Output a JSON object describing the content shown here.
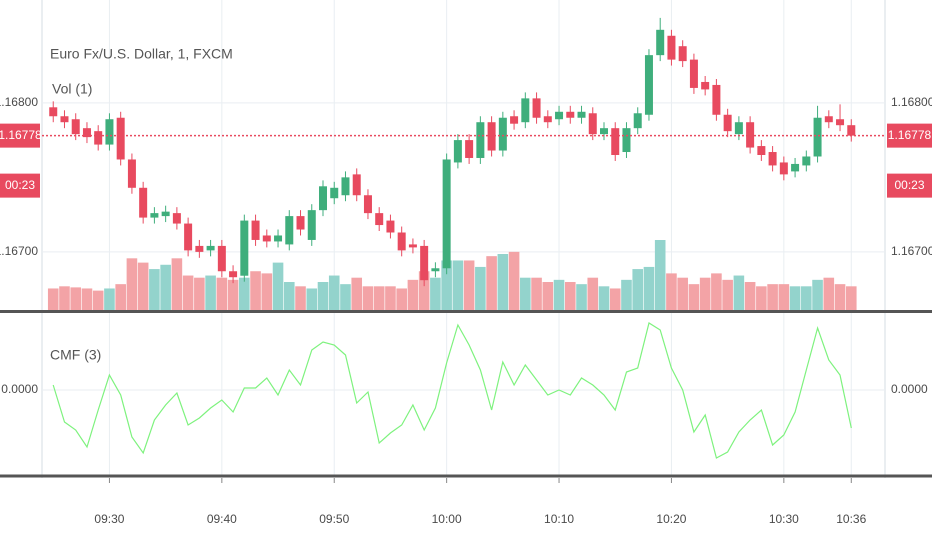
{
  "chart_data": [
    {
      "type": "candlestick",
      "title": "Euro Fx/U.S. Dollar, 1, FXCM",
      "volume_label": "Vol (1)",
      "x": [
        "09:25",
        "09:26",
        "09:27",
        "09:28",
        "09:29",
        "09:30",
        "09:31",
        "09:32",
        "09:33",
        "09:34",
        "09:35",
        "09:36",
        "09:37",
        "09:38",
        "09:39",
        "09:40",
        "09:41",
        "09:42",
        "09:43",
        "09:44",
        "09:45",
        "09:46",
        "09:47",
        "09:48",
        "09:49",
        "09:50",
        "09:51",
        "09:52",
        "09:53",
        "09:54",
        "09:55",
        "09:56",
        "09:57",
        "09:58",
        "09:59",
        "10:00",
        "10:01",
        "10:02",
        "10:03",
        "10:04",
        "10:05",
        "10:06",
        "10:07",
        "10:08",
        "10:09",
        "10:10",
        "10:11",
        "10:12",
        "10:13",
        "10:14",
        "10:15",
        "10:16",
        "10:17",
        "10:18",
        "10:19",
        "10:20",
        "10:21",
        "10:22",
        "10:23",
        "10:24",
        "10:25",
        "10:26",
        "10:27",
        "10:28",
        "10:29",
        "10:30",
        "10:31",
        "10:32",
        "10:33",
        "10:34",
        "10:35",
        "10:36"
      ],
      "open": [
        1.16797,
        1.16791,
        1.16789,
        1.16783,
        1.16781,
        1.16772,
        1.1679,
        1.16762,
        1.16743,
        1.16723,
        1.16724,
        1.16726,
        1.16719,
        1.16704,
        1.16701,
        1.16704,
        1.16687,
        1.16684,
        1.16721,
        1.16711,
        1.16707,
        1.16705,
        1.16724,
        1.16708,
        1.16728,
        1.16736,
        1.16738,
        1.16752,
        1.16738,
        1.16726,
        1.16721,
        1.16713,
        1.16705,
        1.16704,
        1.16687,
        1.16689,
        1.1676,
        1.16775,
        1.16763,
        1.16787,
        1.16768,
        1.16791,
        1.16787,
        1.16803,
        1.16791,
        1.16789,
        1.16794,
        1.1679,
        1.16793,
        1.16779,
        1.16783,
        1.16767,
        1.16783,
        1.16792,
        1.16832,
        1.16845,
        1.16838,
        1.16829,
        1.16814,
        1.16812,
        1.16792,
        1.16779,
        1.16787,
        1.16771,
        1.16767,
        1.1676,
        1.16754,
        1.16758,
        1.16764,
        1.16791,
        1.16789,
        1.16785
      ],
      "high": [
        1.16801,
        1.16795,
        1.16793,
        1.16787,
        1.16785,
        1.16793,
        1.16794,
        1.16766,
        1.16747,
        1.1673,
        1.16731,
        1.1673,
        1.16723,
        1.16708,
        1.16708,
        1.16708,
        1.16691,
        1.16725,
        1.16725,
        1.16715,
        1.16715,
        1.16728,
        1.16728,
        1.16732,
        1.16748,
        1.16747,
        1.16754,
        1.16756,
        1.16742,
        1.1673,
        1.16725,
        1.16717,
        1.16709,
        1.16708,
        1.16693,
        1.16766,
        1.16779,
        1.16779,
        1.16791,
        1.16791,
        1.16794,
        1.16795,
        1.16807,
        1.16807,
        1.16795,
        1.16798,
        1.16798,
        1.16798,
        1.16797,
        1.16787,
        1.16787,
        1.16787,
        1.16797,
        1.16836,
        1.16857,
        1.16849,
        1.16842,
        1.16833,
        1.16818,
        1.16816,
        1.16796,
        1.16791,
        1.16791,
        1.16775,
        1.16771,
        1.16764,
        1.16763,
        1.16768,
        1.16798,
        1.16795,
        1.16799,
        1.16789
      ],
      "low": [
        1.16787,
        1.16783,
        1.16775,
        1.16773,
        1.16768,
        1.16768,
        1.16758,
        1.16739,
        1.16719,
        1.16719,
        1.1672,
        1.16715,
        1.16697,
        1.16696,
        1.16697,
        1.16683,
        1.16679,
        1.1668,
        1.16704,
        1.16703,
        1.16703,
        1.16701,
        1.16711,
        1.16704,
        1.16724,
        1.16732,
        1.16734,
        1.16734,
        1.16722,
        1.16714,
        1.16709,
        1.16697,
        1.16699,
        1.16677,
        1.16683,
        1.16685,
        1.16756,
        1.16759,
        1.16759,
        1.16764,
        1.16764,
        1.16782,
        1.16783,
        1.16786,
        1.16783,
        1.16785,
        1.16786,
        1.16786,
        1.16775,
        1.16775,
        1.16761,
        1.16763,
        1.16779,
        1.16788,
        1.16828,
        1.16825,
        1.16824,
        1.16806,
        1.16805,
        1.16788,
        1.16777,
        1.16775,
        1.16766,
        1.16761,
        1.16754,
        1.16748,
        1.1675,
        1.16754,
        1.1676,
        1.16783,
        1.16781,
        1.16774
      ],
      "close": [
        1.16791,
        1.16787,
        1.16779,
        1.16777,
        1.16772,
        1.16789,
        1.16762,
        1.16743,
        1.16723,
        1.16726,
        1.16727,
        1.16719,
        1.16701,
        1.167,
        1.16704,
        1.16687,
        1.16683,
        1.16721,
        1.16708,
        1.16707,
        1.16711,
        1.16724,
        1.16715,
        1.16728,
        1.16744,
        1.16743,
        1.1675,
        1.16738,
        1.16726,
        1.16718,
        1.16713,
        1.16701,
        1.16703,
        1.16681,
        1.16689,
        1.16762,
        1.16775,
        1.16763,
        1.16787,
        1.16768,
        1.1679,
        1.16786,
        1.16803,
        1.1679,
        1.16787,
        1.16794,
        1.1679,
        1.16794,
        1.16779,
        1.16783,
        1.16765,
        1.16783,
        1.16793,
        1.16832,
        1.16849,
        1.16829,
        1.16828,
        1.1681,
        1.16809,
        1.16792,
        1.16781,
        1.16787,
        1.1677,
        1.16765,
        1.16758,
        1.16752,
        1.16759,
        1.16764,
        1.1679,
        1.16787,
        1.16785,
        1.16778
      ],
      "volume": [
        20,
        22,
        21,
        20,
        18,
        20,
        24,
        48,
        44,
        38,
        42,
        48,
        32,
        30,
        32,
        30,
        28,
        30,
        36,
        34,
        44,
        26,
        22,
        20,
        26,
        32,
        24,
        30,
        22,
        22,
        22,
        20,
        28,
        36,
        30,
        46,
        46,
        46,
        40,
        50,
        52,
        54,
        30,
        30,
        26,
        28,
        26,
        24,
        30,
        22,
        20,
        28,
        38,
        40,
        65,
        34,
        30,
        24,
        30,
        34,
        28,
        32,
        26,
        22,
        24,
        24,
        22,
        22,
        28,
        30,
        24,
        22
      ],
      "up_color": "#3fae7c",
      "down_color": "#e84a5f",
      "volume_up_color": "#93d3cc",
      "volume_down_color": "#f3a3a6",
      "xlim": [
        "09:24",
        "10:39"
      ],
      "xticks": [
        "09:30",
        "09:40",
        "09:50",
        "10:00",
        "10:10",
        "10:20",
        "10:30",
        "10:36"
      ],
      "ylim": [
        1.16661,
        1.16869
      ],
      "yticks": [
        {
          "value": 1.168,
          "label": "1.16800"
        },
        {
          "value": 1.167,
          "label": "1.16700"
        }
      ],
      "last_price": 1.16778,
      "countdown": "00:23",
      "grid": true
    },
    {
      "type": "line",
      "title": "CMF (3)",
      "values": [
        0.05,
        -0.32,
        -0.4,
        -0.57,
        -0.2,
        0.15,
        -0.05,
        -0.47,
        -0.63,
        -0.3,
        -0.15,
        -0.03,
        -0.35,
        -0.28,
        -0.18,
        -0.1,
        -0.22,
        0.02,
        0.02,
        0.12,
        -0.05,
        0.2,
        0.05,
        0.4,
        0.48,
        0.45,
        0.35,
        -0.13,
        -0.02,
        -0.53,
        -0.43,
        -0.35,
        -0.15,
        -0.4,
        -0.18,
        0.27,
        0.65,
        0.45,
        0.2,
        -0.2,
        0.28,
        0.05,
        0.25,
        0.1,
        -0.05,
        0,
        -0.05,
        0.12,
        0.05,
        -0.05,
        -0.2,
        0.18,
        0.22,
        0.67,
        0.6,
        0.22,
        0,
        -0.42,
        -0.25,
        -0.68,
        -0.62,
        -0.42,
        -0.3,
        -0.2,
        -0.55,
        -0.45,
        -0.22,
        0.2,
        0.62,
        0.3,
        0.15,
        -0.38
      ],
      "color": "#7ef27e",
      "ylim": [
        -0.85,
        0.78
      ],
      "yticks": [
        {
          "value": 0,
          "label": "0.0000"
        }
      ],
      "grid": true
    }
  ]
}
